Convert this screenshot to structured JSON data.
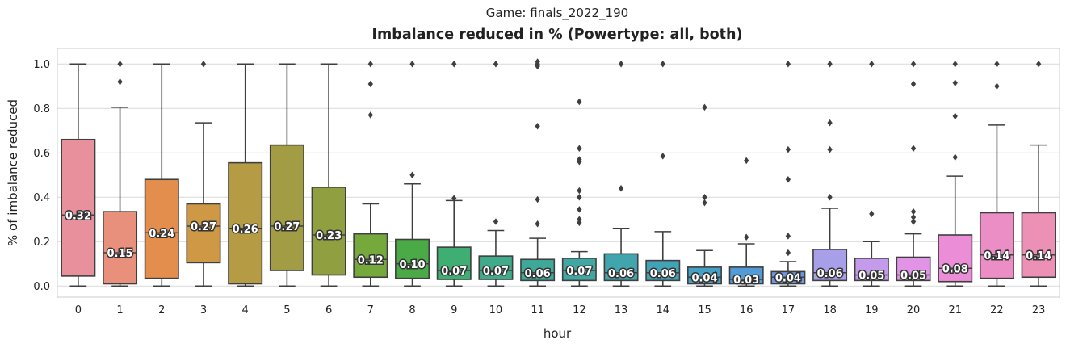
{
  "chart_data": {
    "type": "box",
    "suptitle": "Game: finals_2022_190",
    "title": "Imbalance reduced in % (Powertype: all, both)",
    "xlabel": "hour",
    "ylabel": "% of imbalance reduced",
    "ylim": [
      -0.05,
      1.07
    ],
    "yticks": [
      0.0,
      0.2,
      0.4,
      0.6,
      0.8,
      1.0
    ],
    "ytick_labels": [
      "0.0",
      "0.2",
      "0.4",
      "0.6",
      "0.8",
      "1.0"
    ],
    "grid": true,
    "categories": [
      "0",
      "1",
      "2",
      "3",
      "4",
      "5",
      "6",
      "7",
      "8",
      "9",
      "10",
      "11",
      "12",
      "13",
      "14",
      "15",
      "16",
      "17",
      "18",
      "19",
      "20",
      "21",
      "22",
      "23"
    ],
    "boxes": [
      {
        "hour": "0",
        "color": "#e8909b",
        "q1": 0.045,
        "median": 0.32,
        "q3": 0.66,
        "whisker_low": 0.0,
        "whisker_high": 1.0,
        "outliers": [],
        "mean_label": "0.32"
      },
      {
        "hour": "1",
        "color": "#e8907b",
        "q1": 0.01,
        "median": 0.15,
        "q3": 0.335,
        "whisker_low": 0.0,
        "whisker_high": 0.805,
        "outliers": [
          0.92,
          1.0
        ],
        "mean_label": "0.15"
      },
      {
        "hour": "2",
        "color": "#e48e4e",
        "q1": 0.035,
        "median": 0.24,
        "q3": 0.48,
        "whisker_low": 0.0,
        "whisker_high": 1.0,
        "outliers": [],
        "mean_label": "0.24"
      },
      {
        "hour": "3",
        "color": "#cf9844",
        "q1": 0.105,
        "median": 0.27,
        "q3": 0.37,
        "whisker_low": 0.0,
        "whisker_high": 0.735,
        "outliers": [
          1.0
        ],
        "mean_label": "0.27"
      },
      {
        "hour": "4",
        "color": "#b69b45",
        "q1": 0.01,
        "median": 0.26,
        "q3": 0.555,
        "whisker_low": 0.0,
        "whisker_high": 1.0,
        "outliers": [],
        "mean_label": "0.26"
      },
      {
        "hour": "5",
        "color": "#a29c44",
        "q1": 0.07,
        "median": 0.27,
        "q3": 0.635,
        "whisker_low": 0.0,
        "whisker_high": 1.0,
        "outliers": [],
        "mean_label": "0.27"
      },
      {
        "hour": "6",
        "color": "#90a040",
        "q1": 0.05,
        "median": 0.23,
        "q3": 0.445,
        "whisker_low": 0.0,
        "whisker_high": 1.0,
        "outliers": [],
        "mean_label": "0.23"
      },
      {
        "hour": "7",
        "color": "#76a93c",
        "q1": 0.04,
        "median": 0.12,
        "q3": 0.235,
        "whisker_low": 0.0,
        "whisker_high": 0.37,
        "outliers": [
          0.77,
          0.91,
          1.0
        ],
        "mean_label": "0.12"
      },
      {
        "hour": "8",
        "color": "#4aab46",
        "q1": 0.035,
        "median": 0.1,
        "q3": 0.21,
        "whisker_low": 0.0,
        "whisker_high": 0.46,
        "outliers": [
          0.5,
          1.0
        ],
        "mean_label": "0.10"
      },
      {
        "hour": "9",
        "color": "#3fae72",
        "q1": 0.03,
        "median": 0.07,
        "q3": 0.175,
        "whisker_low": 0.0,
        "whisker_high": 0.385,
        "outliers": [
          0.395,
          1.0
        ],
        "mean_label": "0.07"
      },
      {
        "hour": "10",
        "color": "#3fab8b",
        "q1": 0.03,
        "median": 0.07,
        "q3": 0.135,
        "whisker_low": 0.0,
        "whisker_high": 0.25,
        "outliers": [
          0.29,
          1.0
        ],
        "mean_label": "0.07"
      },
      {
        "hour": "11",
        "color": "#3ea999",
        "q1": 0.025,
        "median": 0.06,
        "q3": 0.12,
        "whisker_low": 0.0,
        "whisker_high": 0.215,
        "outliers": [
          0.28,
          0.39,
          0.72,
          0.99,
          1.0,
          1.01
        ],
        "mean_label": "0.06"
      },
      {
        "hour": "12",
        "color": "#40a7a3",
        "q1": 0.025,
        "median": 0.07,
        "q3": 0.125,
        "whisker_low": 0.0,
        "whisker_high": 0.155,
        "outliers": [
          0.285,
          0.3,
          0.345,
          0.4,
          0.43,
          0.56,
          0.57,
          0.62,
          0.83
        ],
        "mean_label": "0.07"
      },
      {
        "hour": "13",
        "color": "#40a5ac",
        "q1": 0.025,
        "median": 0.06,
        "q3": 0.145,
        "whisker_low": 0.0,
        "whisker_high": 0.26,
        "outliers": [
          0.44,
          1.0
        ],
        "mean_label": "0.06"
      },
      {
        "hour": "14",
        "color": "#42a3b6",
        "q1": 0.025,
        "median": 0.06,
        "q3": 0.115,
        "whisker_low": 0.0,
        "whisker_high": 0.245,
        "outliers": [
          0.585,
          1.0
        ],
        "mean_label": "0.06"
      },
      {
        "hour": "15",
        "color": "#45a0c4",
        "q1": 0.01,
        "median": 0.04,
        "q3": 0.085,
        "whisker_low": 0.0,
        "whisker_high": 0.16,
        "outliers": [
          0.375,
          0.4,
          0.805
        ],
        "mean_label": "0.04"
      },
      {
        "hour": "16",
        "color": "#529bd6",
        "q1": 0.01,
        "median": 0.03,
        "q3": 0.085,
        "whisker_low": 0.0,
        "whisker_high": 0.19,
        "outliers": [
          0.22,
          0.565
        ],
        "mean_label": "0.03"
      },
      {
        "hour": "17",
        "color": "#6f97e0",
        "q1": 0.01,
        "median": 0.04,
        "q3": 0.065,
        "whisker_low": 0.0,
        "whisker_high": 0.11,
        "outliers": [
          0.15,
          0.225,
          0.48,
          0.615,
          1.0
        ],
        "mean_label": "0.04"
      },
      {
        "hour": "18",
        "color": "#a79fe8",
        "q1": 0.025,
        "median": 0.06,
        "q3": 0.165,
        "whisker_low": 0.0,
        "whisker_high": 0.35,
        "outliers": [
          0.4,
          0.615,
          0.735,
          1.0
        ],
        "mean_label": "0.06"
      },
      {
        "hour": "19",
        "color": "#c49beb",
        "q1": 0.025,
        "median": 0.05,
        "q3": 0.125,
        "whisker_low": 0.0,
        "whisker_high": 0.2,
        "outliers": [
          0.325,
          1.0
        ],
        "mean_label": "0.05"
      },
      {
        "hour": "20",
        "color": "#e194e6",
        "q1": 0.025,
        "median": 0.05,
        "q3": 0.13,
        "whisker_low": 0.0,
        "whisker_high": 0.235,
        "outliers": [
          0.29,
          0.31,
          0.335,
          0.62,
          0.91,
          1.0
        ],
        "mean_label": "0.05"
      },
      {
        "hour": "21",
        "color": "#ec8dd8",
        "q1": 0.02,
        "median": 0.08,
        "q3": 0.23,
        "whisker_low": 0.0,
        "whisker_high": 0.495,
        "outliers": [
          0.58,
          0.765,
          0.915,
          1.0
        ],
        "mean_label": "0.08"
      },
      {
        "hour": "22",
        "color": "#ec8ec6",
        "q1": 0.035,
        "median": 0.14,
        "q3": 0.33,
        "whisker_low": 0.0,
        "whisker_high": 0.725,
        "outliers": [
          0.9,
          1.0
        ],
        "mean_label": "0.14"
      },
      {
        "hour": "23",
        "color": "#ec90b6",
        "q1": 0.04,
        "median": 0.14,
        "q3": 0.33,
        "whisker_low": 0.0,
        "whisker_high": 0.635,
        "outliers": [
          1.0
        ],
        "mean_label": "0.14"
      }
    ]
  }
}
